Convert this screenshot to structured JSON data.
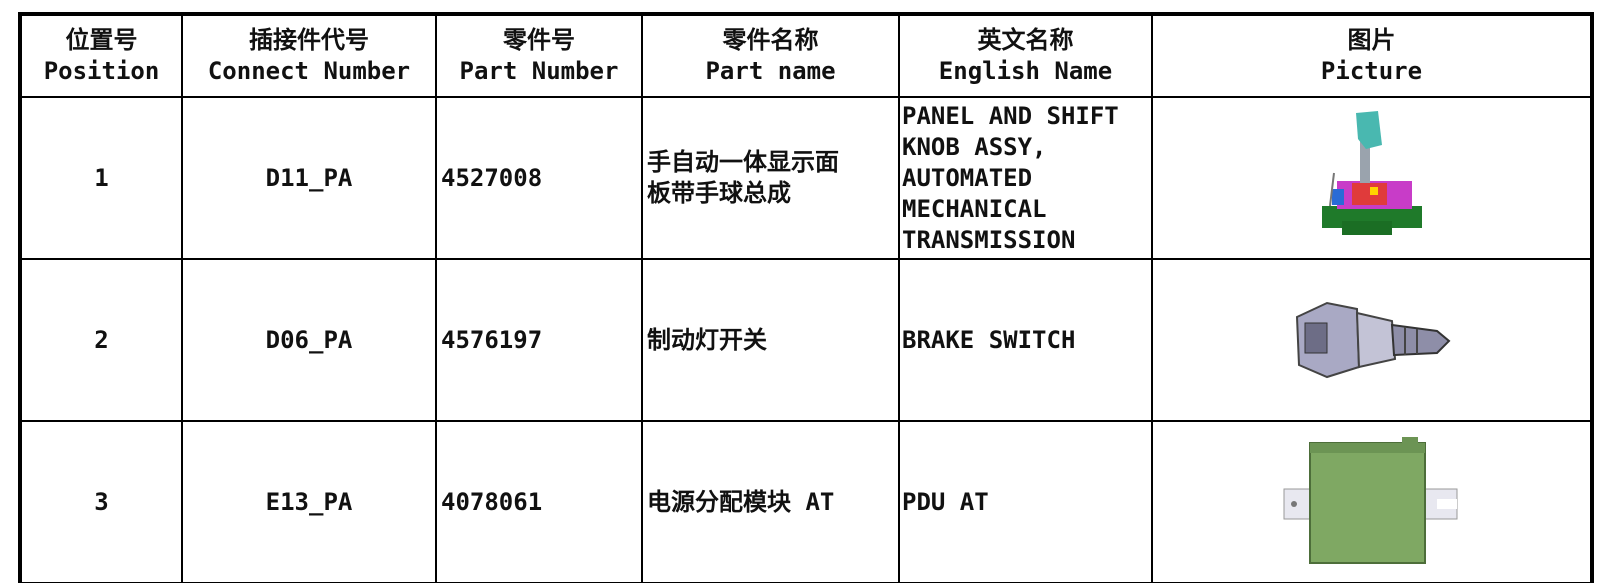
{
  "table": {
    "headers": [
      {
        "zh": "位置号",
        "en": "Position"
      },
      {
        "zh": "插接件代号",
        "en": "Connect Number"
      },
      {
        "zh": "零件号",
        "en": "Part Number"
      },
      {
        "zh": "零件名称",
        "en": "Part name"
      },
      {
        "zh": "英文名称",
        "en": "English Name"
      },
      {
        "zh": "图片",
        "en": "Picture"
      }
    ],
    "rows": [
      {
        "position": "1",
        "connect_number": "D11_PA",
        "part_number": "4527008",
        "part_name": [
          "手自动一体显示面",
          "板带手球总成"
        ],
        "english_name": [
          "PANEL AND SHIFT",
          "KNOB ASSY,",
          "AUTOMATED",
          "MECHANICAL",
          "TRANSMISSION"
        ]
      },
      {
        "position": "2",
        "connect_number": "D06_PA",
        "part_number": "4576197",
        "part_name": [
          "制动灯开关"
        ],
        "english_name": [
          "BRAKE SWITCH"
        ]
      },
      {
        "position": "3",
        "connect_number": "E13_PA",
        "part_number": "4078061",
        "part_name": [
          "电源分配模块 AT"
        ],
        "english_name": [
          "PDU AT"
        ]
      }
    ]
  }
}
